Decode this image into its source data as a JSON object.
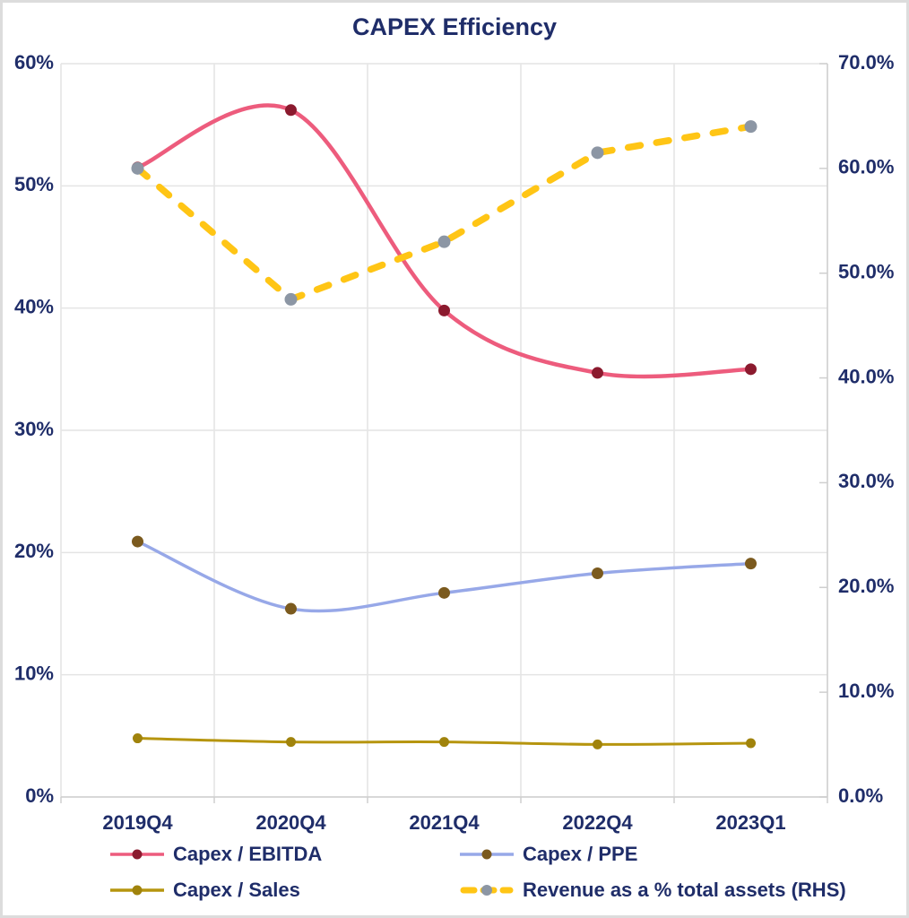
{
  "page": {
    "title": "CAPEX Efficiency"
  },
  "chart_data": {
    "type": "line",
    "title": "CAPEX Efficiency",
    "categories": [
      "2019Q4",
      "2020Q4",
      "2021Q4",
      "2022Q4",
      "2023Q1"
    ],
    "axes": {
      "left": {
        "min": 0,
        "max": 60,
        "tick_step": 10,
        "tick_labels": [
          "0%",
          "10%",
          "20%",
          "30%",
          "40%",
          "50%",
          "60%"
        ]
      },
      "right": {
        "min": 0,
        "max": 70,
        "tick_step": 10,
        "tick_labels": [
          "0.0%",
          "10.0%",
          "20.0%",
          "30.0%",
          "40.0%",
          "50.0%",
          "60.0%",
          "70.0%"
        ]
      }
    },
    "grid": true,
    "legend_position": "bottom",
    "series": [
      {
        "name": "Capex / EBITDA",
        "axis": "left",
        "style": "solid",
        "smooth": true,
        "line_color": "#ED5C7D",
        "marker_color": "#8B1A2E",
        "line_width": 4.5,
        "marker_radius": 6.5,
        "values": [
          51.5,
          56.2,
          39.8,
          34.7,
          35.0
        ]
      },
      {
        "name": "Capex / PPE",
        "axis": "left",
        "style": "solid",
        "smooth": true,
        "line_color": "#97A8E8",
        "marker_color": "#7B5A1E",
        "line_width": 3.5,
        "marker_radius": 6.5,
        "values": [
          20.9,
          15.4,
          16.7,
          18.3,
          19.1
        ]
      },
      {
        "name": "Capex / Sales",
        "axis": "left",
        "style": "solid",
        "smooth": true,
        "line_color": "#B6950F",
        "marker_color": "#A0830C",
        "line_width": 3,
        "marker_radius": 5.5,
        "values": [
          4.8,
          4.5,
          4.5,
          4.3,
          4.4
        ]
      },
      {
        "name": "Revenue as a % total assets (RHS)",
        "axis": "right",
        "style": "dashed",
        "smooth": false,
        "line_color": "#FFC515",
        "marker_color": "#8C96A4",
        "line_width": 7.5,
        "marker_radius": 7,
        "values": [
          60.0,
          47.5,
          53.0,
          61.5,
          64.0
        ]
      }
    ],
    "colors": {
      "title_text": "#1f2d69",
      "axis_text": "#1f2d69",
      "gridline": "#e4e4e4",
      "axis_line": "#cfcfcf",
      "background": "#ffffff"
    }
  }
}
